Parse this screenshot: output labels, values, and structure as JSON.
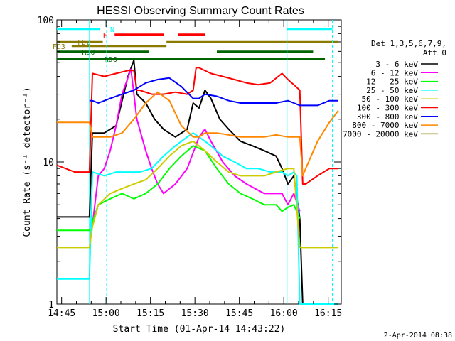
{
  "chart_data": {
    "type": "line",
    "title": "HESSI Observing Summary Count Rates",
    "xlabel": "Start Time (01-Apr-14 14:43:22)",
    "ylabel": "Count Rate (s⁻¹ detector⁻¹)",
    "x_unit": "minutes after 14:43:22",
    "xlim": [
      0,
      96
    ],
    "ylim": [
      1,
      100
    ],
    "yscale": "log",
    "x_ticks": [
      {
        "label": "14:45",
        "x": 1.6
      },
      {
        "label": "15:00",
        "x": 16.6
      },
      {
        "label": "15:15",
        "x": 31.6
      },
      {
        "label": "15:30",
        "x": 46.6
      },
      {
        "label": "15:45",
        "x": 61.6
      },
      {
        "label": "16:00",
        "x": 76.6
      },
      {
        "label": "16:15",
        "x": 91.6
      }
    ],
    "y_ticks": [
      {
        "label": "1",
        "y": 1
      },
      {
        "label": "10",
        "y": 10
      },
      {
        "label": "100",
        "y": 100
      }
    ],
    "legend_title": [
      "Det 1,3,5,6,7,9,",
      "Att 0"
    ],
    "legend_position": "right",
    "footer_date": "2-Apr-2014 08:38",
    "series": [
      {
        "name": "3 - 6 keV",
        "color": "#000000",
        "x": [
          0,
          11,
          12,
          16,
          20,
          24,
          26,
          27,
          30,
          33,
          36,
          40,
          44,
          46,
          48,
          50,
          52,
          55,
          58,
          62,
          66,
          70,
          74,
          76,
          78,
          80,
          82,
          83,
          84,
          86,
          90,
          95
        ],
        "y": [
          4.1,
          4.1,
          16,
          16,
          18,
          40,
          52,
          30,
          26,
          20,
          17,
          15,
          17,
          26,
          24,
          32,
          28,
          20,
          17,
          14,
          13,
          12,
          11,
          9,
          7,
          8,
          4,
          1,
          1,
          1,
          1,
          1
        ]
      },
      {
        "name": "6 - 12 keV",
        "color": "#ff00ff",
        "x": [
          11,
          12,
          14,
          16,
          18,
          20,
          22,
          25,
          27,
          30,
          32,
          34,
          36,
          40,
          44,
          48,
          50,
          52,
          56,
          60,
          64,
          70,
          76,
          78,
          80,
          82
        ],
        "y": [
          3.6,
          3.6,
          8,
          9,
          12,
          18,
          30,
          45,
          20,
          12,
          9,
          7,
          6,
          7,
          9,
          15,
          17,
          14,
          10,
          8,
          7,
          6,
          6,
          5,
          6,
          4.5
        ]
      },
      {
        "name": "12 - 25 keV",
        "color": "#00ff00",
        "x": [
          0,
          11,
          14,
          18,
          22,
          26,
          30,
          34,
          38,
          42,
          46,
          50,
          54,
          58,
          62,
          66,
          70,
          74,
          76,
          78,
          80,
          82
        ],
        "y": [
          3.3,
          3.3,
          5,
          5.5,
          6,
          5.5,
          6,
          7,
          9,
          11,
          13,
          12,
          9,
          7,
          6,
          5.5,
          5,
          5,
          4.5,
          4.8,
          5,
          4
        ]
      },
      {
        "name": "25 - 50 keV",
        "color": "#00ffff",
        "x": [
          0,
          11,
          12,
          16,
          20,
          24,
          28,
          32,
          36,
          40,
          44,
          46,
          48,
          50,
          52,
          56,
          60,
          64,
          68,
          72,
          76,
          78,
          80,
          81,
          82,
          84,
          90,
          95
        ],
        "y": [
          1.5,
          1.5,
          8.5,
          8,
          8.5,
          8.5,
          8.5,
          9,
          11,
          13,
          15,
          16,
          15,
          14,
          13,
          11,
          10,
          9,
          9,
          8.5,
          8.5,
          8,
          8.5,
          8,
          1,
          1,
          1,
          1
        ]
      },
      {
        "name": "50 - 100 keV",
        "color": "#cccc00",
        "x": [
          0,
          11,
          12,
          14,
          18,
          22,
          26,
          30,
          34,
          38,
          42,
          46,
          50,
          54,
          58,
          62,
          66,
          70,
          74,
          78,
          80,
          82,
          84,
          86,
          90,
          95
        ],
        "y": [
          2.5,
          2.5,
          3.5,
          5,
          6,
          6.5,
          7,
          7.5,
          9,
          11,
          13,
          14,
          12,
          10,
          8.5,
          8,
          8,
          8,
          8.5,
          9,
          9,
          2.5,
          2.5,
          2.5,
          2.5,
          2.5
        ]
      },
      {
        "name": "100 - 300 keV",
        "color": "#ff0000",
        "x": [
          0,
          6,
          11,
          12,
          16,
          20,
          24,
          26,
          27,
          28,
          32,
          36,
          40,
          44,
          46,
          47,
          48,
          52,
          56,
          60,
          64,
          68,
          72,
          76,
          78,
          80,
          82,
          83,
          84,
          88,
          92,
          95
        ],
        "y": [
          9.5,
          8.5,
          8.5,
          42,
          40,
          42,
          44,
          44,
          32,
          32,
          30,
          30,
          31,
          30,
          32,
          46,
          46,
          42,
          40,
          38,
          36,
          35,
          36,
          42,
          38,
          35,
          32,
          7,
          7,
          8,
          9,
          9
        ]
      },
      {
        "name": "300 - 800 keV",
        "color": "#0000ff",
        "x": [
          11,
          12,
          14,
          18,
          22,
          26,
          30,
          34,
          38,
          42,
          46,
          48,
          50,
          54,
          58,
          62,
          66,
          70,
          74,
          78,
          80,
          82,
          84,
          88,
          92,
          95
        ],
        "y": [
          27,
          27,
          26,
          28,
          30,
          32,
          36,
          38,
          39,
          34,
          28,
          28,
          30,
          29,
          27,
          26,
          26,
          26,
          26,
          27,
          26,
          25,
          25,
          25,
          27,
          27
        ]
      },
      {
        "name": "800 - 7000 keV",
        "color": "#ff8800",
        "x": [
          0,
          11,
          12,
          14,
          18,
          22,
          26,
          30,
          34,
          38,
          42,
          46,
          48,
          50,
          54,
          58,
          62,
          66,
          70,
          74,
          78,
          82,
          83,
          84,
          88,
          92,
          95
        ],
        "y": [
          19,
          19,
          15,
          15,
          15,
          16,
          20,
          26,
          31,
          27,
          18,
          15,
          15,
          16,
          16,
          15.5,
          15,
          15,
          15,
          15.5,
          15,
          15,
          8,
          9,
          14,
          19,
          23
        ]
      },
      {
        "name": "7000 - 20000 keV",
        "color": "#8b7a00",
        "x": [],
        "y": []
      }
    ],
    "bars": [
      {
        "label": "N",
        "label_x": 18,
        "color": "#00ffff",
        "y_frac": 0.032,
        "segments": [
          [
            0,
            14.5
          ],
          [
            77.7,
            93
          ]
        ]
      },
      {
        "label": "F",
        "label_x": 15.5,
        "color": "#ff0000",
        "y_frac": 0.052,
        "segments": [
          [
            19.5,
            36
          ],
          [
            41,
            50
          ]
        ]
      },
      {
        "label": "FD2",
        "label_x": 7,
        "color": "#8b7a00",
        "y_frac": 0.078,
        "segments": [
          [
            0,
            15.5
          ],
          [
            37,
            95
          ]
        ]
      },
      {
        "label": "FD3",
        "label_x": -1.5,
        "color": "#8b7a00",
        "y_frac": 0.092,
        "segments": [
          [
            5,
            37
          ]
        ]
      },
      {
        "label": "RD0",
        "label_x": 8.5,
        "color": "#006400",
        "y_frac": 0.112,
        "segments": [
          [
            0,
            31
          ],
          [
            54,
            86.5
          ]
        ]
      },
      {
        "label": "RD6",
        "label_x": 16,
        "color": "#006400",
        "y_frac": 0.138,
        "segments": [
          [
            0,
            90.5
          ]
        ]
      }
    ],
    "vlines": [
      {
        "x": 11,
        "color": "#00ffff",
        "style": "solid"
      },
      {
        "x": 16.8,
        "color": "#00ffff",
        "style": "dash"
      },
      {
        "x": 77.7,
        "color": "#00ffff",
        "style": "solid"
      },
      {
        "x": 93,
        "color": "#00ffff",
        "style": "dash"
      }
    ]
  }
}
